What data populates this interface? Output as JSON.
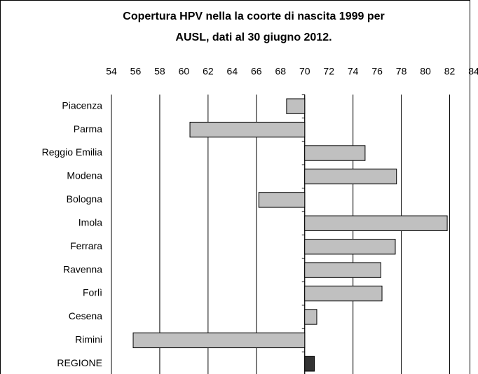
{
  "chart_data": {
    "type": "hbar",
    "title": [
      "Copertura HPV nella la coorte di nascita 1999 per",
      "AUSL,  dati al 30 giugno 2012."
    ],
    "categories": [
      "Piacenza",
      "Parma",
      "Reggio Emilia",
      "Modena",
      "Bologna",
      "Imola",
      "Ferrara",
      "Ravenna",
      "Forlì",
      "Cesena",
      "Rimini",
      "REGIONE"
    ],
    "values": [
      68.5,
      60.5,
      75.0,
      77.6,
      66.2,
      81.8,
      77.5,
      76.3,
      76.4,
      71.0,
      55.8,
      70.8
    ],
    "colors": [
      "#c0c0c0",
      "#c0c0c0",
      "#c0c0c0",
      "#c0c0c0",
      "#c0c0c0",
      "#c0c0c0",
      "#c0c0c0",
      "#c0c0c0",
      "#c0c0c0",
      "#c0c0c0",
      "#c0c0c0",
      "#333333"
    ],
    "baseline": 70,
    "xlim": [
      54,
      84
    ],
    "xticks": [
      54,
      56,
      58,
      60,
      62,
      64,
      66,
      68,
      70,
      72,
      74,
      76,
      78,
      80,
      82,
      84
    ],
    "grid": true
  }
}
